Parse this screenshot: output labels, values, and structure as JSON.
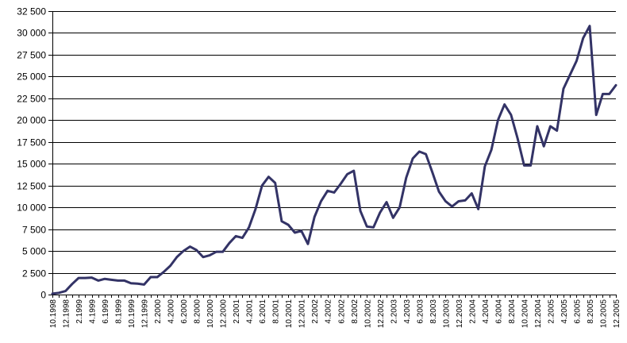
{
  "chart_data": {
    "type": "line",
    "title": "",
    "xlabel": "",
    "ylabel": "",
    "ylim": [
      0,
      32500
    ],
    "yticks": [
      "0",
      "2 500",
      "5 000",
      "7 500",
      "10 000",
      "12 500",
      "15 000",
      "17 500",
      "20 000",
      "22 500",
      "25 000",
      "27 500",
      "30 000",
      "32 500"
    ],
    "ytick_values": [
      0,
      2500,
      5000,
      7500,
      10000,
      12500,
      15000,
      17500,
      20000,
      22500,
      25000,
      27500,
      30000,
      32500
    ],
    "grid": true,
    "legend": "none",
    "x_tick_labels": [
      "10.1998",
      "12.1998",
      "2.1999",
      "4.1999",
      "6.1999",
      "8.1999",
      "10.1999",
      "12.1999",
      "2.2000",
      "4.2000",
      "6.2000",
      "8.2000",
      "10.2000",
      "12.2000",
      "2.2001",
      "4.2001",
      "6.2001",
      "8.2001",
      "10.2001",
      "12.2001",
      "2.2002",
      "4.2002",
      "6.2002",
      "8.2002",
      "10.2002",
      "12.2002",
      "2.2003",
      "4.2003",
      "6.2003",
      "8.2003",
      "10.2003",
      "12.2003",
      "2.2004",
      "4.2004",
      "6.2004",
      "8.2004",
      "10.2004",
      "12.2004",
      "2.2005",
      "4.2005",
      "6.2005",
      "8.2005",
      "10.2005",
      "12.2005"
    ],
    "x": [
      "10.1998",
      "11.1998",
      "12.1998",
      "1.1999",
      "2.1999",
      "3.1999",
      "4.1999",
      "5.1999",
      "6.1999",
      "7.1999",
      "8.1999",
      "9.1999",
      "10.1999",
      "11.1999",
      "12.1999",
      "1.2000",
      "2.2000",
      "3.2000",
      "4.2000",
      "5.2000",
      "6.2000",
      "7.2000",
      "8.2000",
      "9.2000",
      "10.2000",
      "11.2000",
      "12.2000",
      "1.2001",
      "2.2001",
      "3.2001",
      "4.2001",
      "5.2001",
      "6.2001",
      "7.2001",
      "8.2001",
      "9.2001",
      "10.2001",
      "11.2001",
      "12.2001",
      "1.2002",
      "2.2002",
      "3.2002",
      "4.2002",
      "5.2002",
      "6.2002",
      "7.2002",
      "8.2002",
      "9.2002",
      "10.2002",
      "11.2002",
      "12.2002",
      "1.2003",
      "2.2003",
      "3.2003",
      "4.2003",
      "5.2003",
      "6.2003",
      "7.2003",
      "8.2003",
      "9.2003",
      "10.2003",
      "11.2003",
      "12.2003",
      "1.2004",
      "2.2004",
      "3.2004",
      "4.2004",
      "5.2004",
      "6.2004",
      "7.2004",
      "8.2004",
      "9.2004",
      "10.2004",
      "11.2004",
      "12.2004",
      "1.2005",
      "2.2005",
      "3.2005",
      "4.2005",
      "5.2005",
      "6.2005",
      "7.2005",
      "8.2005",
      "9.2005",
      "10.2005",
      "11.2005",
      "12.2005"
    ],
    "series": [
      {
        "color": "#333366",
        "values": [
          100,
          200,
          400,
          1200,
          1900,
          1900,
          1950,
          1600,
          1800,
          1700,
          1600,
          1600,
          1300,
          1250,
          1150,
          2000,
          2000,
          2600,
          3300,
          4300,
          5000,
          5500,
          5100,
          4300,
          4500,
          4900,
          4900,
          5900,
          6700,
          6500,
          7700,
          9800,
          12500,
          13500,
          12800,
          8400,
          8000,
          7100,
          7300,
          5800,
          8900,
          10700,
          11900,
          11700,
          12700,
          13800,
          14200,
          9600,
          7800,
          7700,
          9400,
          10600,
          8800,
          10000,
          13400,
          15600,
          16400,
          16100,
          14000,
          11800,
          10700,
          10100,
          10700,
          10800,
          11600,
          9800,
          14700,
          16600,
          20000,
          21800,
          20600,
          17900,
          14800,
          14800,
          19300,
          17000,
          19300,
          18800,
          23600,
          25200,
          26800,
          29400,
          30800,
          20600,
          23000,
          23000,
          24000
        ]
      }
    ]
  }
}
